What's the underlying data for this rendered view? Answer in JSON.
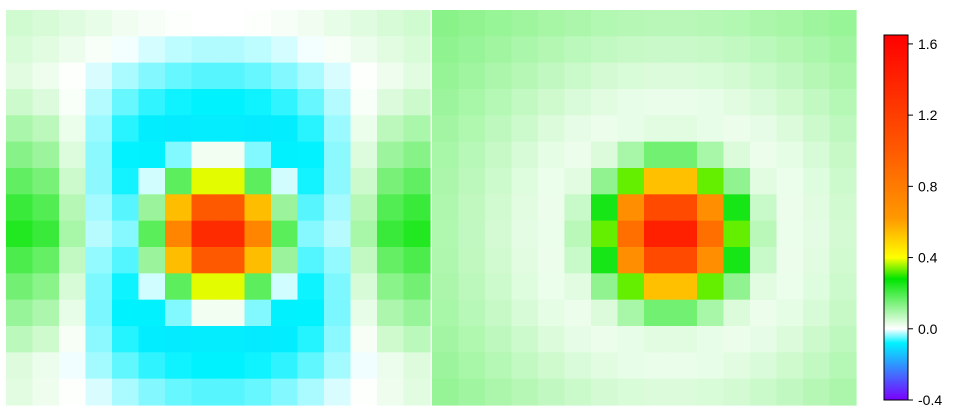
{
  "chart_data": [
    {
      "type": "heatmap",
      "panel": "left",
      "grid": {
        "rows": 15,
        "cols": 16
      },
      "peak": {
        "row": 8,
        "col": 7.5
      },
      "values_formula": "v(r,c) = 1.62*exp(-d^2/(2*1.4^2)) - 0.26*exp(-d^2/(2*5.2^2)) + 0.28*exp(-(c-0.5)^2/4.5)*ridge(r) + 0.28*exp(-(c-14.5)^2/4.5)*ridge(r) + 0.08; d = sqrt((r-8)^2 + (c-7.5)^2)",
      "value_range": [
        -0.1,
        1.6
      ]
    },
    {
      "type": "heatmap",
      "panel": "right",
      "grid": {
        "rows": 15,
        "cols": 16
      },
      "peak": {
        "row": 8,
        "col": 8.5
      },
      "values_formula": "v(r,c) = 1.55*exp(-d^2/(2*1.45^2)) - 0.2*exp(-d^2/(2*6^2)) + 0.16; d = sqrt((r-8)^2 + (c-8.5)^2)",
      "value_range": [
        -0.1,
        1.6
      ]
    }
  ],
  "colorbar": {
    "min": -0.4,
    "max": 1.65,
    "ticks": [
      {
        "value": 1.6,
        "label": "1.6"
      },
      {
        "value": 1.2,
        "label": "1.2"
      },
      {
        "value": 0.8,
        "label": "0.8"
      },
      {
        "value": 0.4,
        "label": "0.4"
      },
      {
        "value": 0.0,
        "label": "0.0"
      },
      {
        "value": -0.4,
        "label": "-0.4"
      }
    ],
    "colormap": [
      {
        "v": -0.4,
        "color": "#7a00ff"
      },
      {
        "v": -0.08,
        "color": "#00f2ff"
      },
      {
        "v": 0.0,
        "color": "#ffffff"
      },
      {
        "v": 0.28,
        "color": "#00e400"
      },
      {
        "v": 0.4,
        "color": "#ffff00"
      },
      {
        "v": 0.62,
        "color": "#ff9900"
      },
      {
        "v": 1.0,
        "color": "#ff5a00"
      },
      {
        "v": 1.65,
        "color": "#ff0000"
      }
    ]
  }
}
